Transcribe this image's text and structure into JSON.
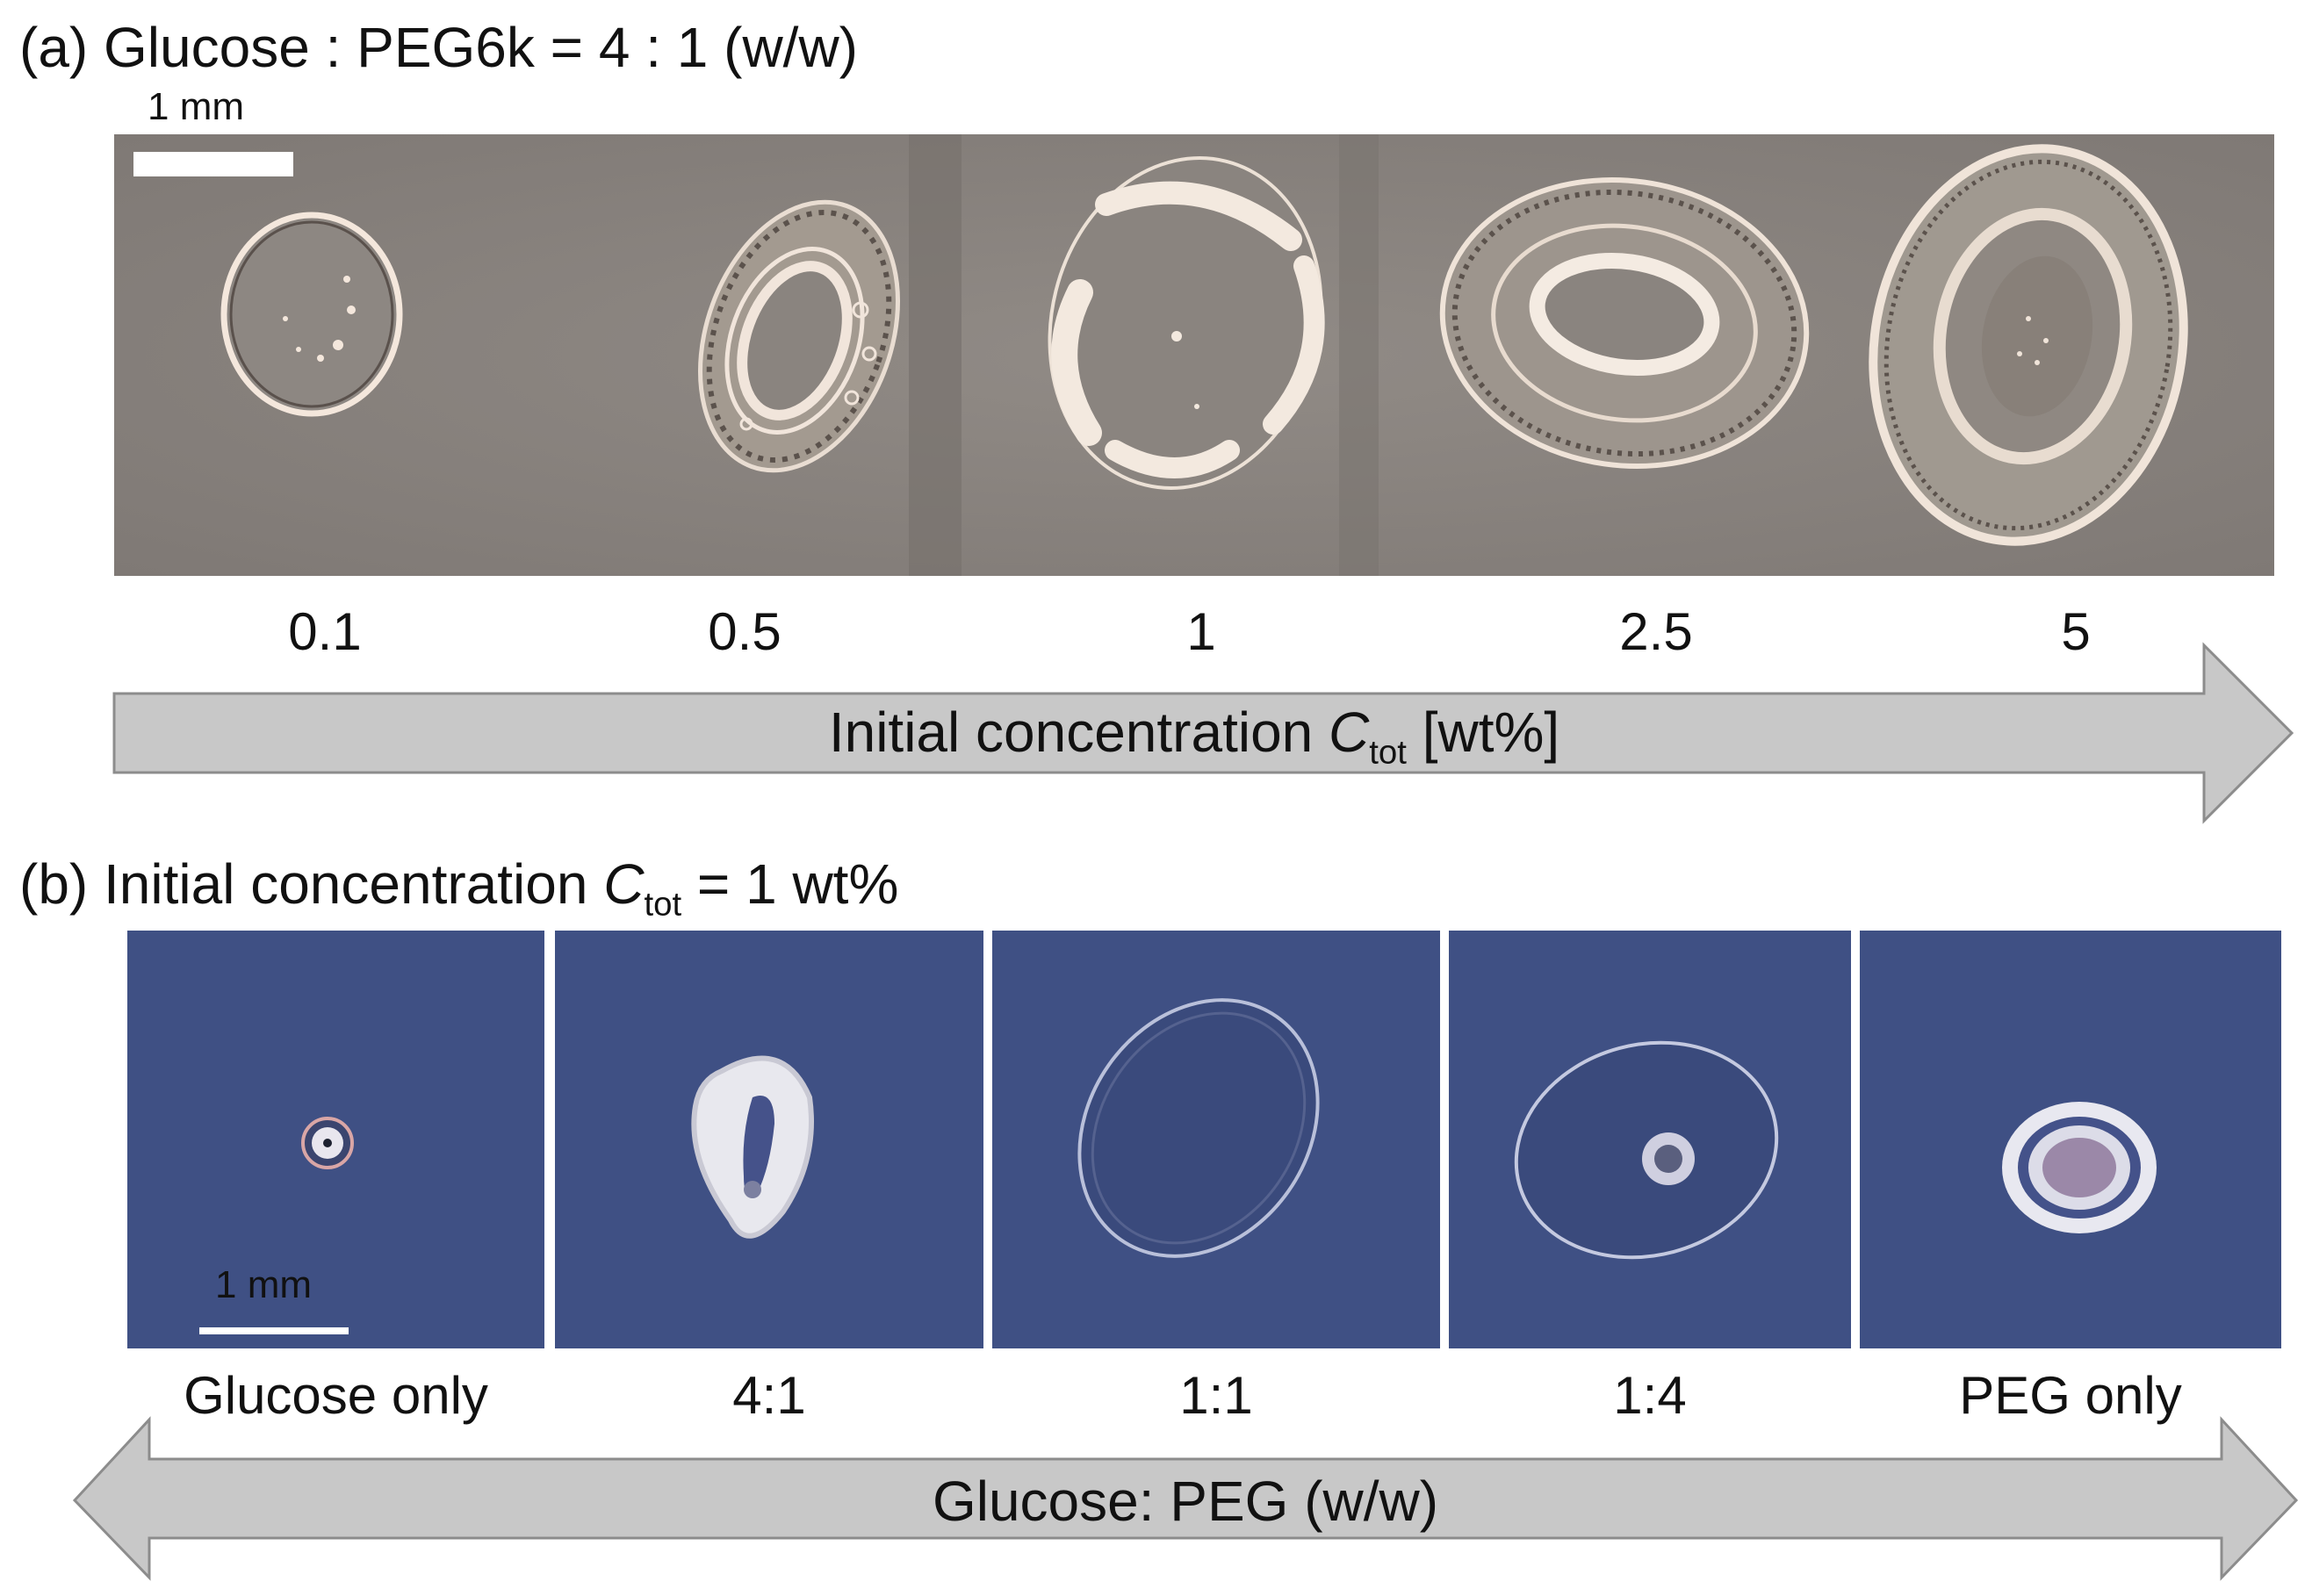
{
  "part_a": {
    "title": "(a) Glucose : PEG6k = 4 : 1 (w/w)",
    "scale_bar_label": "1 mm",
    "concentrations": [
      "0.1",
      "0.5",
      "1",
      "2.5",
      "5"
    ],
    "arrow_label_prefix": "Initial concentration ",
    "arrow_label_var": "C",
    "arrow_label_sub": "tot",
    "arrow_label_suffix": " [wt%]"
  },
  "part_b": {
    "title_prefix": "(b) Initial concentration ",
    "title_var": "C",
    "title_sub": "tot",
    "title_suffix": " = 1 wt%",
    "scale_bar_label": "1 mm",
    "ratios": [
      "Glucose only",
      "4:1",
      "1:1",
      "1:4",
      "PEG only"
    ],
    "arrow_label": "Glucose: PEG (w/w)"
  },
  "colors": {
    "strip_bg": "#8a8480",
    "tile_bg": "#3f5084",
    "arrow_fill": "#c8c8c8",
    "arrow_stroke": "#8c8c8c"
  }
}
